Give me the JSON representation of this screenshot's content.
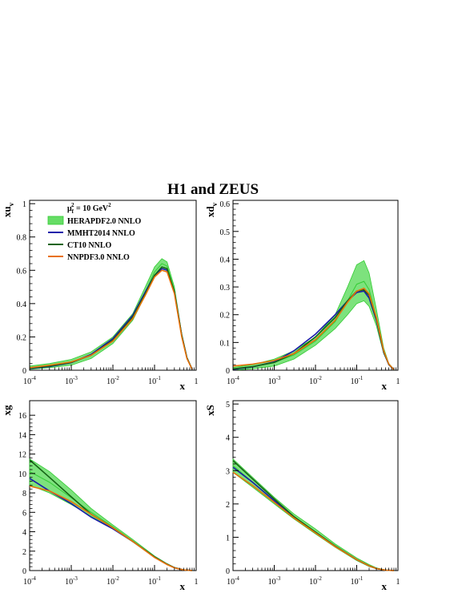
{
  "title": "H1 and ZEUS",
  "legend": {
    "header": "μ²f = 10 GeV²",
    "header_mu": "μ",
    "header_sub": "f",
    "header_sup": "2",
    "header_rest": " = 10 GeV",
    "header_unit_sup": "2",
    "entries": [
      {
        "label": "HERAPDF2.0 NNLO",
        "color": "#33cc33",
        "band": "#66dd66"
      },
      {
        "label": "MMHT2014 NNLO",
        "color": "#1a1aaa"
      },
      {
        "label": "CT10 NNLO",
        "color": "#146414"
      },
      {
        "label": "NNPDF3.0 NNLO",
        "color": "#e8700a"
      }
    ]
  },
  "colors": {
    "hera_band": "#66dd66",
    "hera_band_inner": "#99e699",
    "hera_band_edge": "#33cc33",
    "nnpdf_band": "#f0c070",
    "mmht": "#1a1aaa",
    "ct10": "#146414",
    "nnpdf": "#e8700a"
  },
  "chart_data": [
    {
      "type": "line",
      "panel": "xuv",
      "ylabel": "xu",
      "ylabel_sub": "v",
      "xlabel": "x",
      "xscale": "log",
      "xlim": [
        0.0001,
        1
      ],
      "ylim": [
        0,
        1.02
      ],
      "yticks": [
        "0",
        "0.2",
        "0.4",
        "0.6",
        "0.8",
        "1"
      ],
      "ytick_values": [
        0,
        0.2,
        0.4,
        0.6,
        0.8,
        1
      ],
      "xticks": [
        {
          "base": "10",
          "exp": "-4",
          "value": 0.0001
        },
        {
          "base": "10",
          "exp": "-3",
          "value": 0.001
        },
        {
          "base": "10",
          "exp": "-2",
          "value": 0.01
        },
        {
          "base": "10",
          "exp": "-1",
          "value": 0.1
        },
        {
          "base": "1",
          "exp": "",
          "value": 1
        }
      ],
      "x": [
        0.0001,
        0.0003,
        0.001,
        0.003,
        0.01,
        0.03,
        0.06,
        0.1,
        0.15,
        0.2,
        0.3,
        0.45,
        0.6,
        0.8
      ],
      "series": [
        {
          "name": "HERAPDF2.0 NNLO",
          "kind": "band",
          "lower": [
            0.005,
            0.015,
            0.03,
            0.07,
            0.16,
            0.3,
            0.45,
            0.56,
            0.61,
            0.6,
            0.46,
            0.2,
            0.07,
            0.005
          ],
          "upper": [
            0.025,
            0.04,
            0.065,
            0.11,
            0.2,
            0.34,
            0.5,
            0.62,
            0.67,
            0.65,
            0.5,
            0.22,
            0.08,
            0.006
          ],
          "values": [
            0.015,
            0.028,
            0.048,
            0.09,
            0.18,
            0.32,
            0.47,
            0.59,
            0.64,
            0.625,
            0.48,
            0.21,
            0.075,
            0.005
          ]
        },
        {
          "name": "MMHT2014 NNLO",
          "values": [
            0.01,
            0.022,
            0.045,
            0.095,
            0.19,
            0.33,
            0.47,
            0.57,
            0.61,
            0.6,
            0.47,
            0.21,
            0.075,
            0.005
          ]
        },
        {
          "name": "CT10 NNLO",
          "values": [
            0.012,
            0.025,
            0.047,
            0.09,
            0.18,
            0.32,
            0.46,
            0.57,
            0.62,
            0.61,
            0.47,
            0.21,
            0.075,
            0.005
          ]
        },
        {
          "name": "NNPDF3.0 NNLO",
          "values": [
            0.015,
            0.03,
            0.05,
            0.09,
            0.175,
            0.31,
            0.45,
            0.56,
            0.6,
            0.59,
            0.46,
            0.2,
            0.07,
            0.005
          ]
        }
      ]
    },
    {
      "type": "line",
      "panel": "xdv",
      "ylabel": "xd",
      "ylabel_sub": "v",
      "xlabel": "x",
      "xscale": "log",
      "xlim": [
        0.0001,
        1
      ],
      "ylim": [
        0,
        0.612
      ],
      "yticks": [
        "0",
        "0.1",
        "0.2",
        "0.3",
        "0.4",
        "0.5",
        "0.6"
      ],
      "ytick_values": [
        0,
        0.1,
        0.2,
        0.3,
        0.4,
        0.5,
        0.6
      ],
      "xticks": [
        {
          "base": "10",
          "exp": "-4",
          "value": 0.0001
        },
        {
          "base": "10",
          "exp": "-3",
          "value": 0.001
        },
        {
          "base": "10",
          "exp": "-2",
          "value": 0.01
        },
        {
          "base": "10",
          "exp": "-1",
          "value": 0.1
        },
        {
          "base": "1",
          "exp": "",
          "value": 1
        }
      ],
      "x": [
        0.0001,
        0.0003,
        0.001,
        0.003,
        0.01,
        0.03,
        0.06,
        0.1,
        0.15,
        0.2,
        0.3,
        0.45,
        0.6,
        0.8
      ],
      "series": [
        {
          "name": "HERAPDF2.0 NNLO",
          "kind": "band",
          "lower": [
            0.0,
            0.005,
            0.015,
            0.04,
            0.09,
            0.15,
            0.2,
            0.24,
            0.25,
            0.23,
            0.16,
            0.06,
            0.02,
            0.002
          ],
          "upper": [
            0.01,
            0.02,
            0.04,
            0.07,
            0.12,
            0.2,
            0.3,
            0.38,
            0.395,
            0.35,
            0.22,
            0.08,
            0.025,
            0.003
          ],
          "values": [
            0.005,
            0.012,
            0.028,
            0.055,
            0.105,
            0.175,
            0.25,
            0.31,
            0.32,
            0.29,
            0.19,
            0.07,
            0.022,
            0.002
          ]
        },
        {
          "name": "MMHT2014 NNLO",
          "values": [
            0.003,
            0.012,
            0.03,
            0.07,
            0.13,
            0.2,
            0.25,
            0.28,
            0.285,
            0.26,
            0.18,
            0.065,
            0.02,
            0.002
          ]
        },
        {
          "name": "CT10 NNLO",
          "values": [
            0.005,
            0.013,
            0.028,
            0.06,
            0.12,
            0.19,
            0.25,
            0.285,
            0.29,
            0.27,
            0.185,
            0.067,
            0.021,
            0.002
          ]
        },
        {
          "name": "NNPDF3.0 NNLO",
          "values": [
            0.015,
            0.022,
            0.035,
            0.06,
            0.11,
            0.18,
            0.245,
            0.285,
            0.295,
            0.275,
            0.19,
            0.07,
            0.022,
            0.002
          ]
        }
      ]
    },
    {
      "type": "line",
      "panel": "xg",
      "ylabel": "xg",
      "ylabel_sub": "",
      "xlabel": "x",
      "xscale": "log",
      "xlim": [
        0.0001,
        1
      ],
      "ylim": [
        0,
        17.5
      ],
      "yticks": [
        "0",
        "2",
        "4",
        "6",
        "8",
        "10",
        "12",
        "14",
        "16"
      ],
      "ytick_values": [
        0,
        2,
        4,
        6,
        8,
        10,
        12,
        14,
        16
      ],
      "xticks": [
        {
          "base": "10",
          "exp": "-4",
          "value": 0.0001
        },
        {
          "base": "10",
          "exp": "-3",
          "value": 0.001
        },
        {
          "base": "10",
          "exp": "-2",
          "value": 0.01
        },
        {
          "base": "10",
          "exp": "-1",
          "value": 0.1
        },
        {
          "base": "1",
          "exp": "",
          "value": 1
        }
      ],
      "x": [
        0.0001,
        0.0003,
        0.001,
        0.003,
        0.01,
        0.03,
        0.1,
        0.2,
        0.3,
        0.5,
        0.8
      ],
      "series": [
        {
          "name": "HERAPDF2.0 NNLO",
          "kind": "band",
          "lower": [
            8.8,
            8.0,
            6.8,
            5.6,
            4.3,
            2.95,
            1.35,
            0.6,
            0.28,
            0.06,
            0.005
          ],
          "upper": [
            11.5,
            10.2,
            8.3,
            6.4,
            4.7,
            3.2,
            1.5,
            0.72,
            0.33,
            0.08,
            0.01
          ],
          "values": [
            10.2,
            9.1,
            7.5,
            6.0,
            4.5,
            3.05,
            1.42,
            0.66,
            0.3,
            0.07,
            0.008
          ]
        },
        {
          "name": "MMHT2014 NNLO",
          "values": [
            9.5,
            8.2,
            6.9,
            5.5,
            4.3,
            3.0,
            1.4,
            0.65,
            0.3,
            0.07,
            0.008
          ]
        },
        {
          "name": "CT10 NNLO",
          "values": [
            11.4,
            9.6,
            7.6,
            5.8,
            4.4,
            3.0,
            1.4,
            0.65,
            0.3,
            0.07,
            0.008
          ]
        },
        {
          "name": "NNPDF3.0 NNLO",
          "values": [
            8.7,
            8.2,
            7.1,
            5.8,
            4.4,
            3.0,
            1.35,
            0.62,
            0.28,
            0.07,
            0.008
          ]
        }
      ]
    },
    {
      "type": "line",
      "panel": "xS",
      "ylabel": "xS",
      "ylabel_sub": "",
      "xlabel": "x",
      "xscale": "log",
      "xlim": [
        0.0001,
        1
      ],
      "ylim": [
        0,
        5.1
      ],
      "yticks": [
        "0",
        "1",
        "2",
        "3",
        "4",
        "5"
      ],
      "ytick_values": [
        0,
        1,
        2,
        3,
        4,
        5
      ],
      "xticks": [
        {
          "base": "10",
          "exp": "-4",
          "value": 0.0001
        },
        {
          "base": "10",
          "exp": "-3",
          "value": 0.001
        },
        {
          "base": "10",
          "exp": "-2",
          "value": 0.01
        },
        {
          "base": "10",
          "exp": "-1",
          "value": 0.1
        },
        {
          "base": "1",
          "exp": "",
          "value": 1
        }
      ],
      "x": [
        0.0001,
        0.0003,
        0.001,
        0.003,
        0.01,
        0.03,
        0.1,
        0.2,
        0.3,
        0.5,
        0.8
      ],
      "series": [
        {
          "name": "HERAPDF2.0 NNLO",
          "kind": "band",
          "lower": [
            2.95,
            2.5,
            2.0,
            1.55,
            1.1,
            0.7,
            0.3,
            0.12,
            0.05,
            0.01,
            0.0
          ],
          "upper": [
            3.35,
            2.8,
            2.2,
            1.7,
            1.25,
            0.8,
            0.38,
            0.18,
            0.08,
            0.02,
            0.002
          ],
          "values": [
            3.15,
            2.65,
            2.1,
            1.62,
            1.17,
            0.75,
            0.34,
            0.15,
            0.065,
            0.015,
            0.001
          ]
        },
        {
          "name": "MMHT2014 NNLO",
          "values": [
            3.1,
            2.65,
            2.1,
            1.6,
            1.15,
            0.73,
            0.33,
            0.14,
            0.06,
            0.012,
            0.001
          ]
        },
        {
          "name": "CT10 NNLO",
          "values": [
            3.3,
            2.75,
            2.15,
            1.62,
            1.15,
            0.73,
            0.33,
            0.14,
            0.06,
            0.012,
            0.001
          ]
        },
        {
          "name": "NNPDF3.0 NNLO",
          "values": [
            2.95,
            2.55,
            2.05,
            1.58,
            1.13,
            0.72,
            0.33,
            0.14,
            0.06,
            0.012,
            0.001
          ]
        }
      ]
    }
  ]
}
